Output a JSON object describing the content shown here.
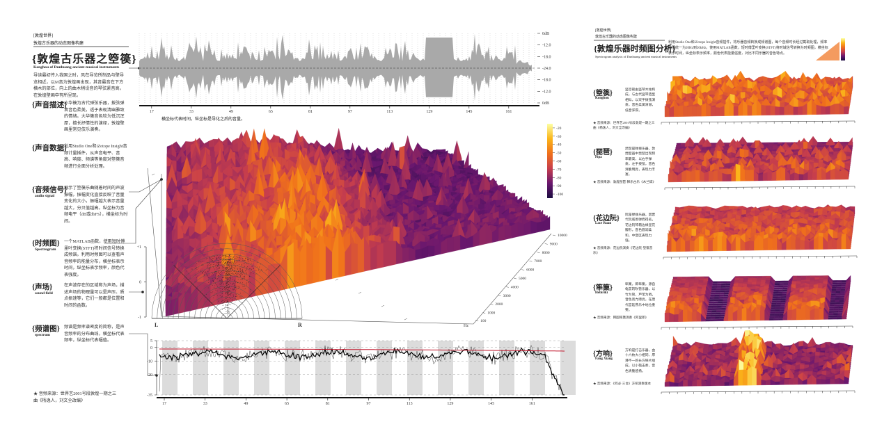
{
  "left": {
    "tag": "[敦煌世界]",
    "series_name": "敦煌古乐器的动态图像构建",
    "title": "{敦煌古乐器之箜篌}",
    "subtitle": "Konghou of Dunhuang ancient musical instruments",
    "intro": "导读最初传入我国之时，风在导览所制品与壁导览相近，以M音为敦煌画出现，其音最音在下方横木的部位，向上的曲木稍设音的琴弦紧音高，在敦煌壁画中有所呈现。",
    "sections": [
      {
        "title": "{声音描述}",
        "text": "小华篌为古代弹弦乐器，拨弦弹奏音色柔美，适于表现清幽雅致的情绪。大华篌音色较为低沉浑厚，擅长抒情性的演绎，敦煌壁画里常见伎乐演奏。"
      },
      {
        "title": "{声音数据}",
        "text": "利用Studio One和iZotope Insight音频计量插件，从声音电平、音高、响度、频谱等角度对箜篌音频进行全面分析处理。"
      },
      {
        "title": "{音频信号}",
        "en": "audio signal",
        "text": "展示了箜篌乐曲随着时间的声波振幅，振幅变化直接反映了音量变化的大小，振幅越大表示音量越大，分贝值越高。纵坐标为音频电平（dB或dbFS），横坐标为时间。"
      },
      {
        "title": "{时频图}",
        "en": "Spectrogram",
        "text": "一个MATLAB函数，使用短时傅里叶变换(STFT)将时间信号转换成频谱。利用时频图可以查看声音频率的能量分布，横坐标表示时间，纵坐标表示频率，颜色代表强度。"
      },
      {
        "title": "{声场}",
        "en": "sound field",
        "text": "在声波存在的区域称为声场，描述声场的物理量可以是声压、质点振速等，它们一般都是位置和时间的函数。"
      },
      {
        "title": "{频谱图}",
        "en": "spectrum",
        "text": "频谱是频率谱密度的简称，是声音频率的分布曲线，横坐标代表频率，纵坐标代表幅值。"
      }
    ],
    "footnote": "★ 音频来源：世界艺2001号段敦煌一期之三曲《杨逸人，刘文全改编》"
  },
  "waveform": {
    "scale_labels": [
      "0dB",
      "-12.0",
      "-18.0",
      "-24.0",
      "-18.0",
      "-12.0",
      "0dB"
    ],
    "xlim": [
      12,
      172
    ],
    "xticks": [
      17,
      33,
      49,
      65,
      81,
      97,
      113,
      129,
      145,
      161
    ],
    "caption": "横坐标代表时间，纵坐标是导化之后的音量。"
  },
  "spectrogram": {
    "colorbar_lim": [
      -15,
      -105
    ],
    "colorbar_ticks": [
      -20,
      -30,
      -40,
      -50,
      -60,
      -70,
      -80,
      -90,
      -100
    ],
    "zlim": [
      0,
      10000
    ],
    "freq_ticks": [
      100,
      1000,
      2000,
      3000,
      4000,
      5000,
      6000,
      7000,
      8000,
      9000,
      10000
    ],
    "freq_label": "Hz"
  },
  "sound_field": {
    "ylim": [
      -1,
      1
    ],
    "yticks": [
      {
        "value": 1,
        "label": "+1"
      },
      0,
      -1
    ],
    "left_label": "L",
    "right_label": "R"
  },
  "spectrum": {
    "ylim": [
      -35,
      5
    ],
    "yticks": [
      5,
      0,
      -10,
      -20,
      -35
    ],
    "xlim": [
      14,
      174
    ],
    "xticks": [
      17,
      33,
      49,
      65,
      81,
      97,
      113,
      129,
      145,
      161
    ]
  },
  "right": {
    "tag": "[敦煌世界]",
    "series_name": "敦煌古乐器的动态图像构建",
    "title": "{敦煌乐器时频图分析}",
    "subtitle": "Spectrogram analysis of Dunhuang ancient musical instruments",
    "intro": "利用Studio One和iZotope Insight音频插件，将乐器音频转换成频谱图，每个音频时长经过截取处理，频率范围统一为20Hz到20kHz。使用MATLAB函数，短时傅里叶变换(STFT)将时域信号转换为时频图，横坐标表示时间，纵坐标表示频率，颜色代表能量强度，对比不同乐器的音色特点。",
    "instruments": [
      {
        "name": "{箜篌}",
        "en": "Konghou",
        "text": "竖箜篌由竖琴木柱构成，与古代竖琴造型相似，以双手拨弦演奏，音色柔美清澈，低音浑厚。",
        "source": "★ 音频来源：世界艺2001号段敦煌一期之三曲《杨逸人，刘文全改编》"
      },
      {
        "name": "{琵琶}",
        "en": "Pipa",
        "text": "琵琶是弹拨乐器，敦煌壁画中琵琶出现频率最高，以右手弹奏，左手按弦，音色清脆明亮，表现力丰富。",
        "source": "★ 音频来源：敦煌琵琶·释乐古乐《木兰辞》"
      },
      {
        "name": "{花边阮}",
        "en": "Lace Ruan",
        "text": "阮是弹拨乐器，因晋代阮咸善弹而得名，花边阮琴箱边缘呈花瓣形，音色圆润柔和，中音区表现力强。",
        "source": "★ 音频来源：花边阮演奏《花边阮·箜篌音乐》"
      },
      {
        "name": "{筚篥}",
        "en": "Hebiriki",
        "text": "筚篥，即筚篥，源自龟兹的吹管乐器，以竹为管，芦苇为哨，音色高亢嘹亮，在唐代宫廷燕乐中地位重要。",
        "source": "★ 音频来源：韩国筚篥演奏《阿里郎》"
      },
      {
        "name": "{方响}",
        "en": "Fang Xiang",
        "text": "方响是打击乐器，由十六枚大小相同、厚薄不一的长方铁片组成，以小槌击奏，音色清脆悠扬。",
        "source": "★ 音频来源：《何必·三台》方响演奏版本"
      }
    ]
  }
}
